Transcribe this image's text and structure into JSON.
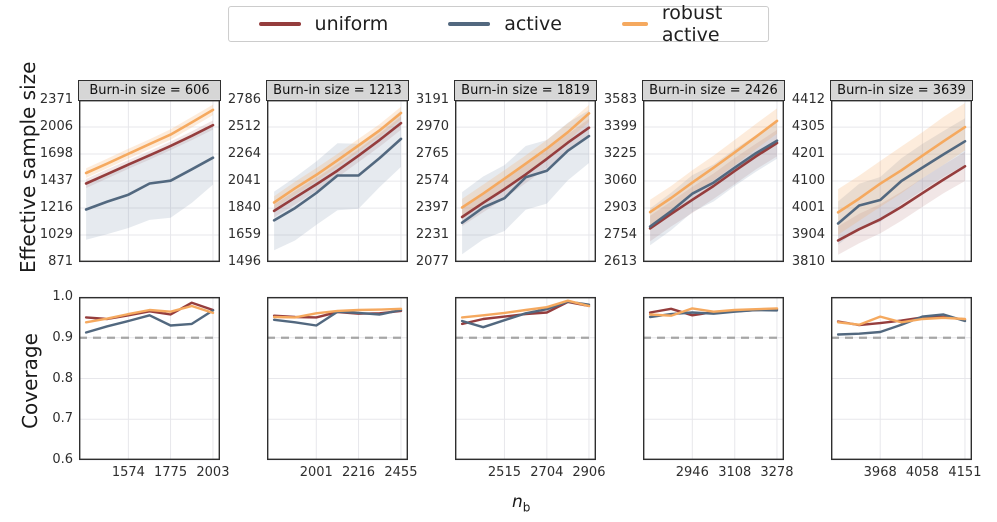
{
  "chart_data": {
    "type": "line",
    "description": "2x5 grid of log-log line plots; top row effective sample size vs n_b per burn-in size, bottom row coverage with 0.9 reference dashed line",
    "legend_position": "top-center",
    "grid": true,
    "legend": [
      {
        "name": "uniform",
        "color": "#953d3d"
      },
      {
        "name": "active",
        "color": "#52687f"
      },
      {
        "name": "robust active",
        "color": "#f5a95f"
      }
    ],
    "band_colors": {
      "uniform": "#953d3d",
      "active": "#6b83a0",
      "robust_active": "#f5a95f"
    },
    "ref_line_color": "#a6a6a6",
    "ylabel_top": "Effective sample size",
    "ylabel_bottom": "Coverage",
    "xlabel": {
      "main": "n",
      "sub": "b"
    },
    "coverage_yticks": [
      "1.0",
      "0.9",
      "0.8",
      "0.7",
      "0.6"
    ],
    "coverage_ylim": [
      0.6,
      1.0
    ],
    "coverage_ref_line": 0.9,
    "panels": [
      {
        "title": "Burn-in size = 606",
        "xticks": [
          1574,
          1775,
          2003
        ],
        "x": [
          1395,
          1482,
          1574,
          1672,
          1775,
          1886,
          2003
        ],
        "ess_yticks": [
          2371,
          2006,
          1698,
          1437,
          1216,
          1029,
          871
        ],
        "ess": {
          "uniform": {
            "y": [
              1415,
              1500,
              1590,
              1685,
              1785,
              1900,
              2030
            ],
            "lo": [
              1375,
              1460,
              1550,
              1640,
              1740,
              1850,
              1975
            ],
            "hi": [
              1455,
              1545,
              1635,
              1730,
              1835,
              1955,
              2090
            ]
          },
          "active": {
            "y": [
              1205,
              1265,
              1320,
              1415,
              1440,
              1545,
              1660
            ],
            "lo": [
              1000,
              1035,
              1075,
              1130,
              1145,
              1255,
              1405
            ],
            "hi": [
              1405,
              1490,
              1590,
              1705,
              1765,
              1885,
              2015
            ]
          },
          "robust_active": {
            "y": [
              1510,
              1600,
              1700,
              1805,
              1915,
              2065,
              2230
            ],
            "lo": [
              1465,
              1555,
              1650,
              1750,
              1855,
              2000,
              2160
            ],
            "hi": [
              1555,
              1650,
              1755,
              1860,
              1980,
              2135,
              2305
            ]
          }
        },
        "coverage": {
          "uniform": [
            0.95,
            0.946,
            0.955,
            0.965,
            0.957,
            0.986,
            0.968
          ],
          "active": [
            0.913,
            0.928,
            0.941,
            0.955,
            0.93,
            0.934,
            0.967
          ],
          "robust_active": [
            0.938,
            0.947,
            0.958,
            0.968,
            0.964,
            0.978,
            0.961
          ]
        }
      },
      {
        "title": "Burn-in size = 1213",
        "xticks": [
          2001,
          2216,
          2455
        ],
        "x": [
          1807,
          1901,
          2001,
          2106,
          2216,
          2332,
          2455
        ],
        "ess_yticks": [
          2786,
          2512,
          2264,
          2041,
          1840,
          1659,
          1496
        ],
        "ess": {
          "uniform": {
            "y": [
              1820,
              1915,
              2015,
              2125,
              2250,
              2390,
              2550
            ],
            "lo": [
              1775,
              1865,
              1965,
              2070,
              2195,
              2330,
              2485
            ],
            "hi": [
              1865,
              1965,
              2065,
              2180,
              2305,
              2450,
              2615
            ]
          },
          "active": {
            "y": [
              1755,
              1840,
              1950,
              2085,
              2085,
              2230,
              2400
            ],
            "lo": [
              1565,
              1625,
              1725,
              1825,
              1835,
              1995,
              2155
            ],
            "hi": [
              1960,
              2070,
              2200,
              2360,
              2355,
              2495,
              2675
            ]
          },
          "robust_active": {
            "y": [
              1880,
              1985,
              2090,
              2210,
              2340,
              2480,
              2650
            ],
            "lo": [
              1835,
              1935,
              2040,
              2155,
              2285,
              2420,
              2585
            ],
            "hi": [
              1925,
              2035,
              2145,
              2265,
              2400,
              2540,
              2715
            ]
          }
        },
        "coverage": {
          "uniform": [
            0.954,
            0.951,
            0.95,
            0.963,
            0.959,
            0.96,
            0.966
          ],
          "active": [
            0.944,
            0.938,
            0.93,
            0.964,
            0.961,
            0.957,
            0.968
          ],
          "robust_active": [
            0.951,
            0.95,
            0.96,
            0.966,
            0.968,
            0.969,
            0.971
          ]
        }
      },
      {
        "title": "Burn-in size = 1819",
        "xticks": [
          2515,
          2704,
          2906
        ],
        "x": [
          2339,
          2425,
          2515,
          2608,
          2704,
          2803,
          2906
        ],
        "ess_yticks": [
          3191,
          2970,
          2765,
          2574,
          2397,
          2231,
          2077
        ],
        "ess": {
          "uniform": {
            "y": [
              2340,
              2430,
              2520,
              2620,
              2730,
              2850,
              2965
            ],
            "lo": [
              2285,
              2370,
              2460,
              2560,
              2665,
              2785,
              2895
            ],
            "hi": [
              2395,
              2490,
              2580,
              2685,
              2795,
              2915,
              3035
            ]
          },
          "active": {
            "y": [
              2305,
              2400,
              2460,
              2600,
              2645,
              2790,
              2900
            ],
            "lo": [
              2120,
              2205,
              2255,
              2385,
              2425,
              2580,
              2700
            ],
            "hi": [
              2500,
              2605,
              2685,
              2825,
              2870,
              3005,
              3105
            ]
          },
          "robust_active": {
            "y": [
              2400,
              2490,
              2590,
              2695,
              2805,
              2930,
              3080
            ],
            "lo": [
              2345,
              2430,
              2530,
              2635,
              2740,
              2865,
              3010
            ],
            "hi": [
              2455,
              2550,
              2650,
              2755,
              2870,
              3000,
              3150
            ]
          }
        },
        "coverage": {
          "uniform": [
            0.934,
            0.946,
            0.952,
            0.958,
            0.962,
            0.988,
            0.978
          ],
          "active": [
            0.941,
            0.926,
            0.943,
            0.96,
            0.97,
            0.989,
            0.981
          ],
          "robust_active": [
            0.95,
            0.955,
            0.961,
            0.968,
            0.975,
            0.991,
            0.978
          ]
        }
      },
      {
        "title": "Burn-in size = 2426",
        "xticks": [
          2946,
          3108,
          3278
        ],
        "x": [
          2793,
          2868,
          2946,
          3026,
          3108,
          3192,
          3278
        ],
        "ess_yticks": [
          3583,
          3399,
          3225,
          3060,
          2903,
          2754,
          2613
        ],
        "ess": {
          "uniform": {
            "y": [
              2790,
              2870,
              2950,
              3030,
              3120,
              3210,
              3295
            ],
            "lo": [
              2720,
              2800,
              2875,
              2955,
              3040,
              3130,
              3210
            ],
            "hi": [
              2860,
              2940,
              3025,
              3105,
              3200,
              3290,
              3380
            ]
          },
          "active": {
            "y": [
              2800,
              2885,
              2985,
              3050,
              3140,
              3230,
              3310
            ],
            "lo": [
              2700,
              2780,
              2880,
              2940,
              3030,
              3115,
              3195
            ],
            "hi": [
              2900,
              2990,
              3095,
              3160,
              3255,
              3345,
              3430
            ]
          },
          "robust_active": {
            "y": [
              2880,
              2960,
              3050,
              3140,
              3235,
              3335,
              3440
            ],
            "lo": [
              2810,
              2890,
              2975,
              3065,
              3155,
              3255,
              3355
            ],
            "hi": [
              2950,
              3030,
              3125,
              3215,
              3315,
              3420,
              3525
            ]
          }
        },
        "coverage": {
          "uniform": [
            0.962,
            0.971,
            0.955,
            0.963,
            0.965,
            0.968,
            0.97
          ],
          "active": [
            0.951,
            0.958,
            0.962,
            0.959,
            0.964,
            0.968,
            0.967
          ],
          "robust_active": [
            0.957,
            0.954,
            0.972,
            0.964,
            0.968,
            0.97,
            0.972
          ]
        }
      },
      {
        "title": "Burn-in size = 3639",
        "xticks": [
          3968,
          4058,
          4151
        ],
        "x": [
          3880,
          3924,
          3968,
          4013,
          4058,
          4104,
          4151
        ],
        "ess_yticks": [
          4412,
          4305,
          4201,
          4100,
          4001,
          3904,
          3810
        ],
        "ess": {
          "uniform": {
            "y": [
              3885,
              3925,
              3960,
              4005,
              4055,
              4105,
              4155
            ],
            "lo": [
              3835,
              3875,
              3910,
              3955,
              4005,
              4055,
              4100
            ],
            "hi": [
              3935,
              3980,
              4015,
              4060,
              4110,
              4160,
              4210
            ]
          },
          "active": {
            "y": [
              3945,
              4010,
              4030,
              4100,
              4150,
              4200,
              4250
            ],
            "lo": [
              3870,
              3930,
              3950,
              4015,
              4065,
              4115,
              4160
            ],
            "hi": [
              4025,
              4090,
              4115,
              4185,
              4240,
              4290,
              4340
            ]
          },
          "robust_active": {
            "y": [
              3985,
              4035,
              4090,
              4140,
              4195,
              4250,
              4305
            ],
            "lo": [
              3905,
              3955,
              4005,
              4055,
              4110,
              4160,
              4215
            ],
            "hi": [
              4070,
              4120,
              4175,
              4230,
              4285,
              4345,
              4400
            ]
          }
        },
        "coverage": {
          "uniform": [
            0.94,
            0.931,
            0.936,
            0.942,
            0.95,
            0.951,
            0.945
          ],
          "active": [
            0.908,
            0.91,
            0.914,
            0.932,
            0.952,
            0.957,
            0.941
          ],
          "robust_active": [
            0.938,
            0.932,
            0.952,
            0.938,
            0.946,
            0.949,
            0.946
          ]
        }
      }
    ]
  }
}
